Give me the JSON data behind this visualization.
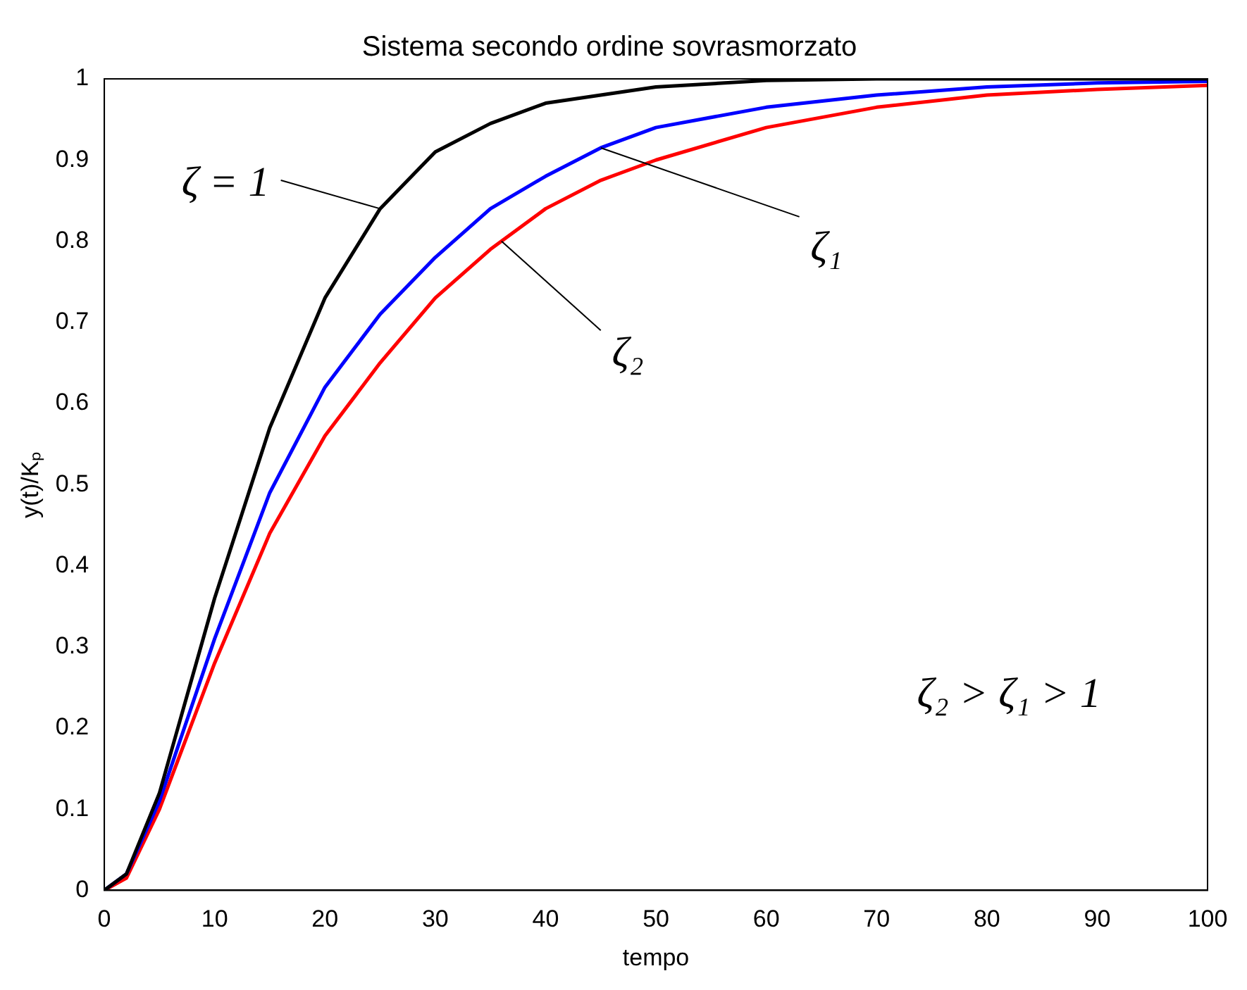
{
  "chart_data": {
    "type": "line",
    "title": "Sistema secondo ordine sovrasmorzato",
    "xlabel": "tempo",
    "ylabel": "y(t)/Kₚ",
    "xlim": [
      0,
      100
    ],
    "ylim": [
      0,
      1
    ],
    "xticks": [
      0,
      10,
      20,
      30,
      40,
      50,
      60,
      70,
      80,
      90,
      100
    ],
    "yticks": [
      0,
      0.1,
      0.2,
      0.3,
      0.4,
      0.5,
      0.6,
      0.7,
      0.8,
      0.9,
      1
    ],
    "grid": false,
    "legend": false,
    "marker": "none",
    "line_style": "solid",
    "annotations": [
      {
        "text": "ζ = 1",
        "x": 25,
        "y": 0.84
      },
      {
        "text": "ζ₁",
        "x": 45,
        "y": 0.915
      },
      {
        "text": "ζ₂",
        "x": 36,
        "y": 0.8
      },
      "ζ₂ > ζ₁ > 1"
    ],
    "series": [
      {
        "color": "#000000",
        "x": [
          0,
          2,
          5,
          10,
          15,
          20,
          25,
          30,
          35,
          40,
          50,
          60,
          70,
          100
        ],
        "values": [
          0,
          0.02,
          0.12,
          0.36,
          0.57,
          0.73,
          0.84,
          0.91,
          0.945,
          0.97,
          0.99,
          0.998,
          1,
          1
        ]
      },
      {
        "color": "#0000ff",
        "x": [
          0,
          2,
          5,
          10,
          15,
          20,
          25,
          30,
          35,
          40,
          45,
          50,
          60,
          70,
          80,
          90,
          100
        ],
        "values": [
          0,
          0.02,
          0.11,
          0.31,
          0.49,
          0.62,
          0.71,
          0.78,
          0.84,
          0.88,
          0.915,
          0.94,
          0.965,
          0.98,
          0.99,
          0.995,
          0.997
        ]
      },
      {
        "color": "#ff0000",
        "x": [
          0,
          2,
          5,
          10,
          15,
          20,
          25,
          30,
          35,
          40,
          45,
          50,
          60,
          70,
          80,
          90,
          100
        ],
        "values": [
          0,
          0.015,
          0.1,
          0.28,
          0.44,
          0.56,
          0.65,
          0.73,
          0.79,
          0.84,
          0.875,
          0.9,
          0.94,
          0.965,
          0.98,
          0.987,
          0.992
        ]
      }
    ]
  }
}
